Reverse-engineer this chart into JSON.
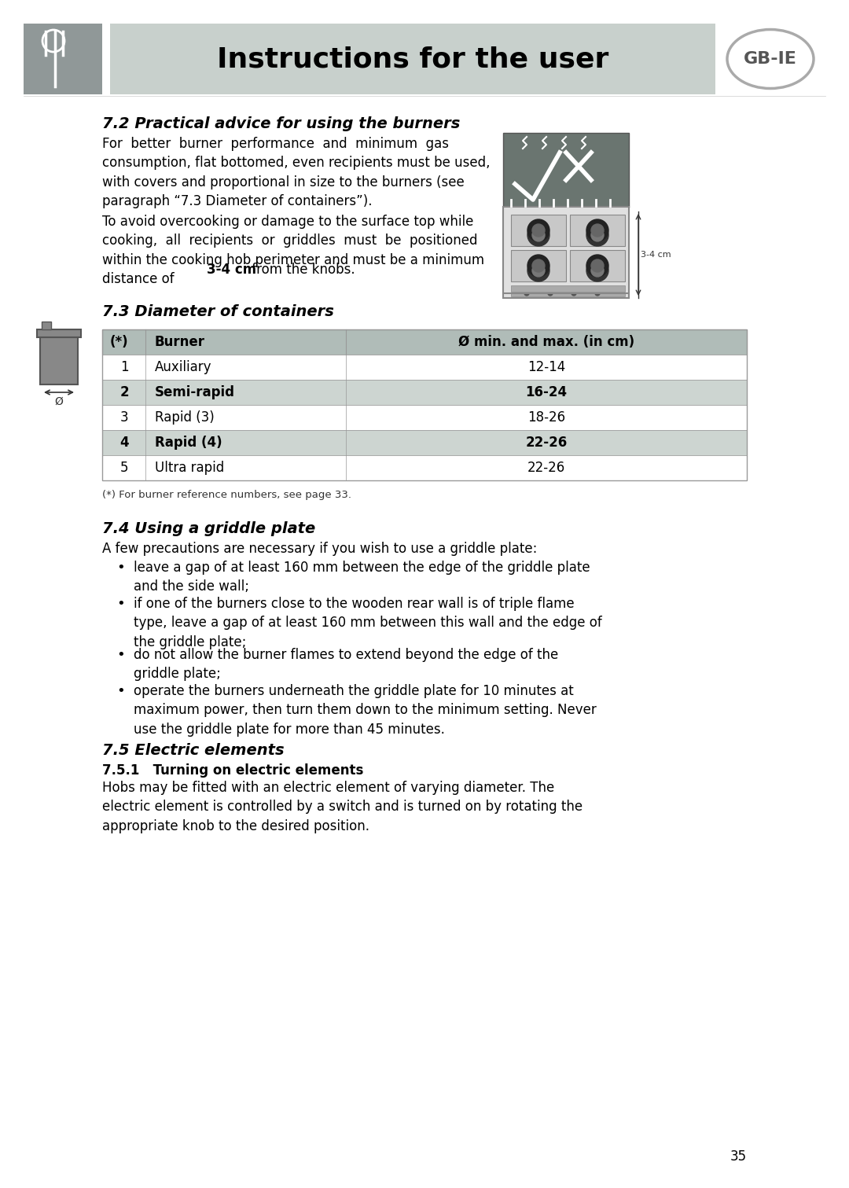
{
  "page_bg": "#ffffff",
  "header_bg": "#c8d0cc",
  "header_text": "Instructions for the user",
  "gb_ie_label": "GB-IE",
  "section_7_2_title": "7.2 Practical advice for using the burners",
  "section_7_2_para1_parts": [
    [
      "For  better  burner  performance  and  minimum  gas\nconsumption, flat bottomed, even recipients must be used,\nwith covers and proportional in size to the burners (see\nparagraph “7.3 Diameter of containers”).",
      "normal"
    ]
  ],
  "section_7_2_para2_pre": "To avoid overcooking or damage to the surface top while\ncooking,  all  recipients  or  griddles  must  be  positioned\nwithin the cooking hob perimeter and must be a minimum\ndistance of ",
  "section_7_2_bold": "3-4 cm",
  "section_7_2_para2_end": " from the knobs.",
  "section_7_3_title": "7.3 Diameter of containers",
  "table_header_col1": "(*)",
  "table_header_col2": "Burner",
  "table_header_col3": "Ø min. and max. (in cm)",
  "table_rows": [
    {
      "num": "1",
      "burner": "Auxiliary",
      "diameter": "12-14",
      "shaded": false
    },
    {
      "num": "2",
      "burner": "Semi-rapid",
      "diameter": "16-24",
      "shaded": true
    },
    {
      "num": "3",
      "burner": "Rapid (3)",
      "diameter": "18-26",
      "shaded": false
    },
    {
      "num": "4",
      "burner": "Rapid (4)",
      "diameter": "22-26",
      "shaded": true
    },
    {
      "num": "5",
      "burner": "Ultra rapid",
      "diameter": "22-26",
      "shaded": false
    }
  ],
  "table_shaded_color": "#cdd5d1",
  "table_header_color": "#b0bcb8",
  "table_border_color": "#999999",
  "footnote": "(*) For burner reference numbers, see page 33.",
  "section_7_4_title": "7.4 Using a griddle plate",
  "section_7_4_intro": "A few precautions are necessary if you wish to use a griddle plate:",
  "section_7_4_bullets": [
    "leave a gap of at least 160 mm between the edge of the griddle plate\nand the side wall;",
    "if one of the burners close to the wooden rear wall is of triple flame\ntype, leave a gap of at least 160 mm between this wall and the edge of\nthe griddle plate;",
    "do not allow the burner flames to extend beyond the edge of the\ngriddle plate;",
    "operate the burners underneath the griddle plate for 10 minutes at\nmaximum power, then turn them down to the minimum setting. Never\nuse the griddle plate for more than 45 minutes."
  ],
  "section_7_5_title": "7.5 Electric elements",
  "section_7_5_1_title": "7.5.1   Turning on electric elements",
  "section_7_5_1_text": "Hobs may be fitted with an electric element of varying diameter. The\nelectric element is controlled by a switch and is turned on by rotating the\nappropriate knob to the desired position.",
  "page_number": "35"
}
